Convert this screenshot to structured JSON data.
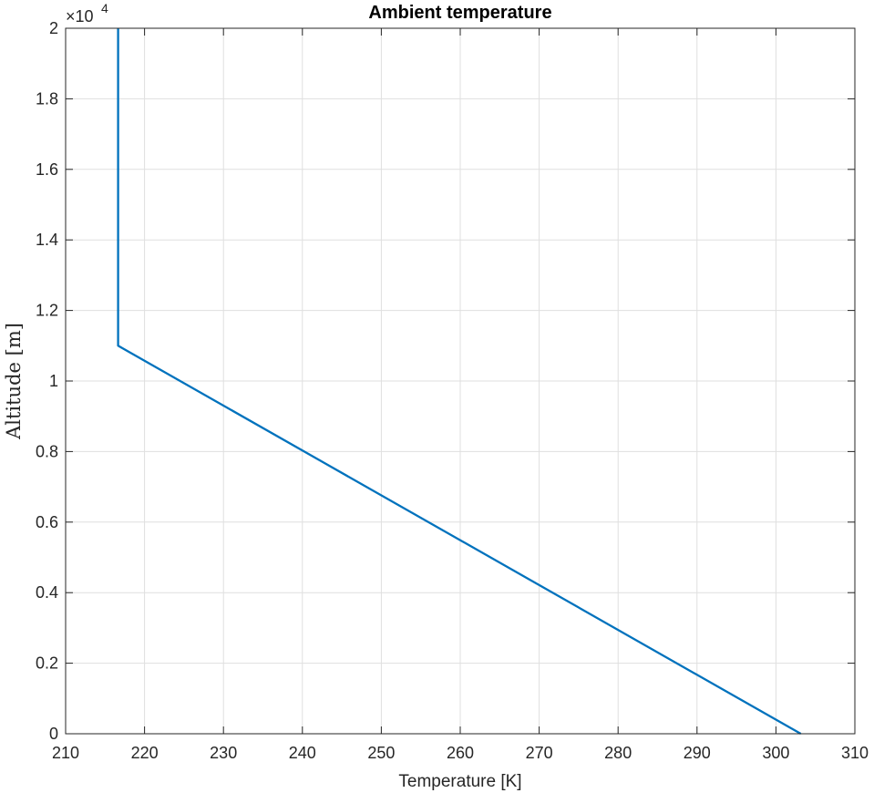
{
  "chart_data": {
    "type": "line",
    "title": "Ambient temperature",
    "xlabel": "Temperature [K]",
    "ylabel": "Altitude [m]",
    "xlim": [
      210,
      310
    ],
    "ylim": [
      0,
      20000
    ],
    "xticks": [
      210,
      220,
      230,
      240,
      250,
      260,
      270,
      280,
      290,
      300,
      310
    ],
    "yticks": [
      0,
      2000,
      4000,
      6000,
      8000,
      10000,
      12000,
      14000,
      16000,
      18000,
      20000
    ],
    "yticklabels": [
      "0",
      "0.2",
      "0.4",
      "0.6",
      "0.8",
      "1",
      "1.2",
      "1.4",
      "1.6",
      "1.8",
      "2"
    ],
    "y_exponent_base": "×10",
    "y_exponent_power": "4",
    "grid": true,
    "series": [
      {
        "color": "#0072BD",
        "x": [
          303.15,
          216.65,
          216.65
        ],
        "y": [
          0,
          11000,
          20000
        ]
      }
    ],
    "colors": {
      "line": "#0072BD",
      "grid": "#dfdfdf",
      "axis": "#262626"
    }
  }
}
